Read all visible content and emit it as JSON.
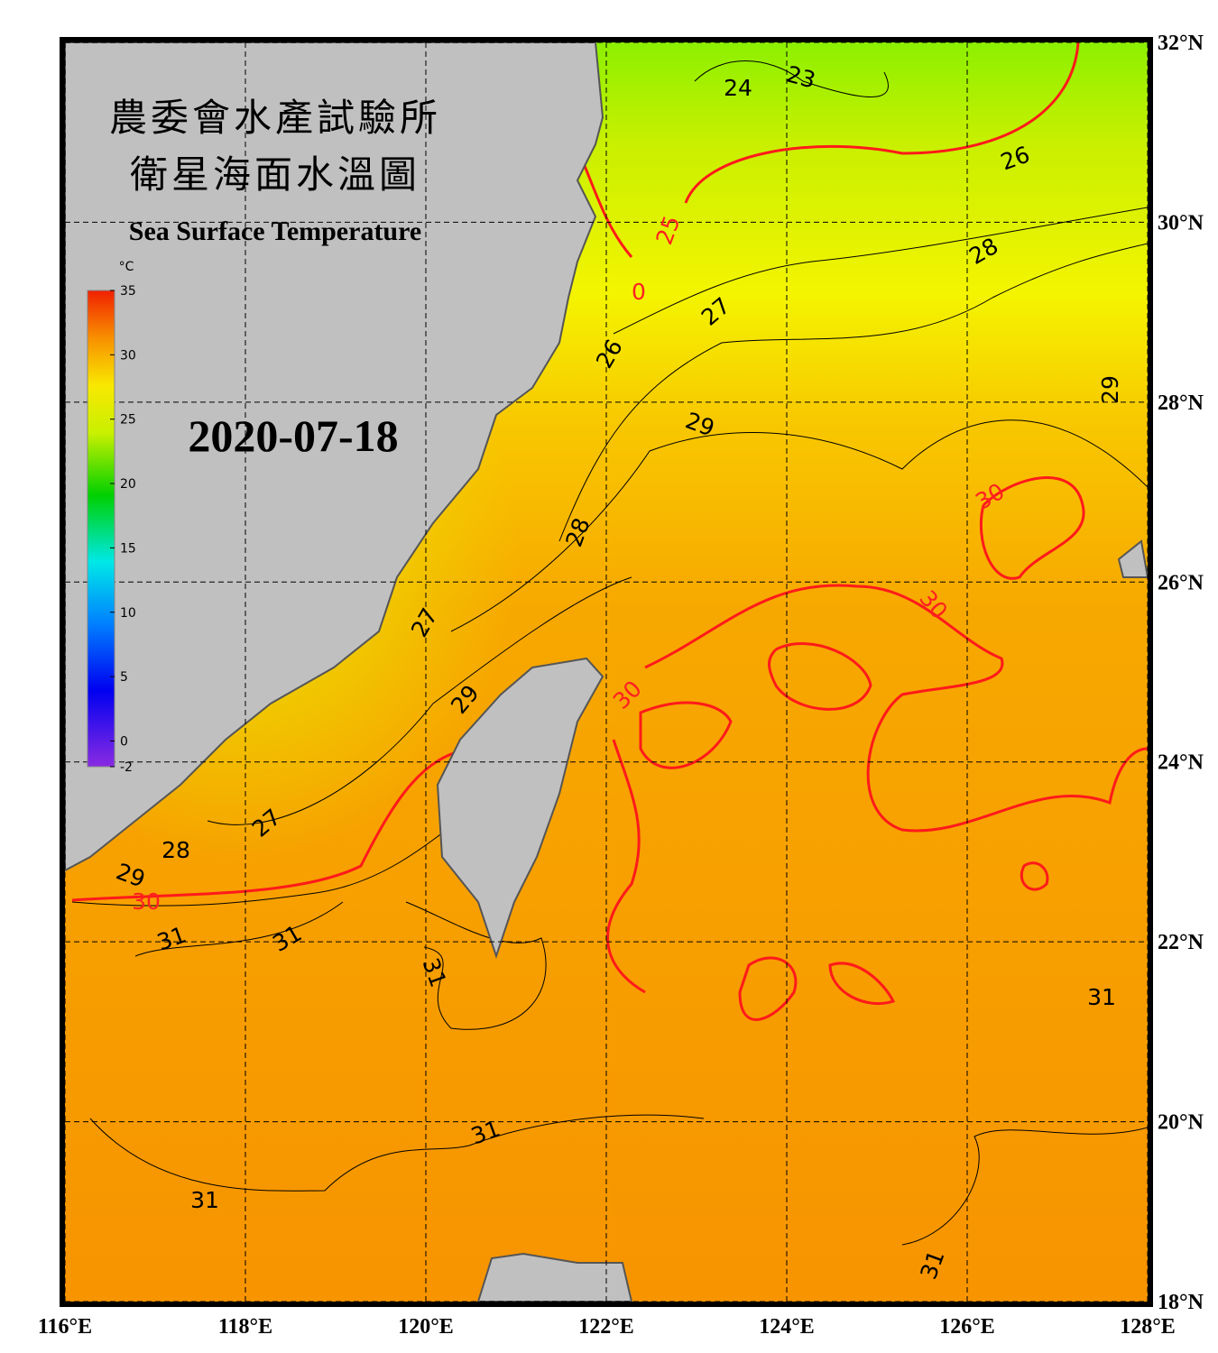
{
  "map": {
    "title_lines": [
      "農委會水產試驗所",
      "衛星海面水溫圖"
    ],
    "subtitle": "Sea Surface Temperature",
    "date": "2020-07-18",
    "xlim": [
      116,
      128
    ],
    "ylim": [
      18,
      32
    ],
    "xticks": [
      {
        "value": 116,
        "label": "116°E"
      },
      {
        "value": 118,
        "label": "118°E"
      },
      {
        "value": 120,
        "label": "120°E"
      },
      {
        "value": 122,
        "label": "122°E"
      },
      {
        "value": 124,
        "label": "124°E"
      },
      {
        "value": 126,
        "label": "126°E"
      },
      {
        "value": 128,
        "label": "128°E"
      }
    ],
    "yticks": [
      {
        "value": 18,
        "label": "18°N"
      },
      {
        "value": 20,
        "label": "20°N"
      },
      {
        "value": 22,
        "label": "22°N"
      },
      {
        "value": 24,
        "label": "24°N"
      },
      {
        "value": 26,
        "label": "26°N"
      },
      {
        "value": 28,
        "label": "28°N"
      },
      {
        "value": 30,
        "label": "30°N"
      },
      {
        "value": 32,
        "label": "32°N"
      }
    ],
    "grid": true,
    "colorbar": {
      "unit": "°C",
      "range": [
        -2,
        35
      ],
      "ticks": [
        35,
        30,
        25,
        20,
        15,
        10,
        5,
        0,
        -2
      ]
    },
    "contour_labels": [
      {
        "value": 24,
        "color": "#000000"
      },
      {
        "value": 23,
        "color": "#000000"
      },
      {
        "value": 26,
        "color": "#000000"
      },
      {
        "value": 25,
        "color": "#ff2020"
      },
      {
        "value": 0,
        "color": "#ff2020"
      },
      {
        "value": 28,
        "color": "#000000"
      },
      {
        "value": 27,
        "color": "#000000"
      },
      {
        "value": 26,
        "color": "#000000"
      },
      {
        "value": 29,
        "color": "#000000"
      },
      {
        "value": 29,
        "color": "#000000"
      },
      {
        "value": 30,
        "color": "#ff2020"
      },
      {
        "value": 28,
        "color": "#000000"
      },
      {
        "value": 30,
        "color": "#ff2020"
      },
      {
        "value": 27,
        "color": "#000000"
      },
      {
        "value": 29,
        "color": "#000000"
      },
      {
        "value": 30,
        "color": "#ff2020"
      },
      {
        "value": 27,
        "color": "#000000"
      },
      {
        "value": 28,
        "color": "#000000"
      },
      {
        "value": 29,
        "color": "#000000"
      },
      {
        "value": 30,
        "color": "#ff2020"
      },
      {
        "value": 31,
        "color": "#000000"
      },
      {
        "value": 31,
        "color": "#000000"
      },
      {
        "value": 31,
        "color": "#000000"
      },
      {
        "value": 31,
        "color": "#000000"
      },
      {
        "value": 31,
        "color": "#000000"
      },
      {
        "value": 31,
        "color": "#000000"
      },
      {
        "value": 31,
        "color": "#000000"
      }
    ]
  }
}
